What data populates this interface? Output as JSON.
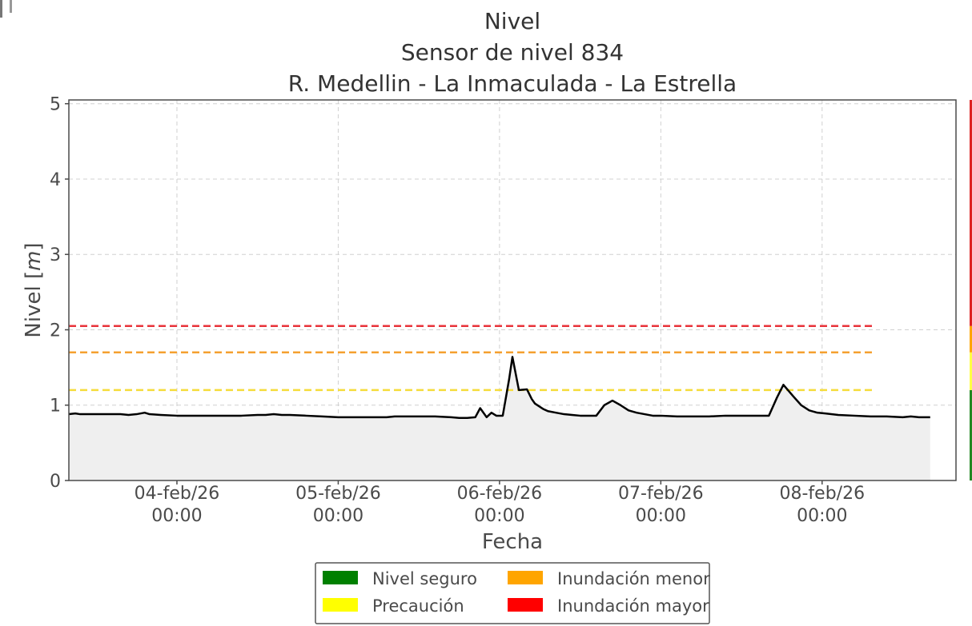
{
  "chart_data": {
    "type": "area",
    "title": [
      "Nivel",
      "Sensor de nivel 834",
      "R. Medellin - La Inmaculada - La Estrella"
    ],
    "xlabel": "Fecha",
    "ylabel_prefix": "Nivel [",
    "ylabel_unit": "m",
    "ylabel_suffix": "]",
    "x_unit": "days since 04-feb-26 00:00",
    "xlim": [
      -0.67,
      4.83
    ],
    "ylim": [
      0,
      5.05
    ],
    "grid": true,
    "xticks": [
      {
        "x": 0,
        "line1": "04-feb/26",
        "line2": "00:00"
      },
      {
        "x": 1,
        "line1": "05-feb/26",
        "line2": "00:00"
      },
      {
        "x": 2,
        "line1": "06-feb/26",
        "line2": "00:00"
      },
      {
        "x": 3,
        "line1": "07-feb/26",
        "line2": "00:00"
      },
      {
        "x": 4,
        "line1": "08-feb/26",
        "line2": "00:00"
      }
    ],
    "yticks": [
      0,
      1,
      2,
      3,
      4,
      5
    ],
    "thresholds": [
      {
        "name": "Precaución",
        "value": 1.2,
        "color": "#f5dc3c"
      },
      {
        "name": "Inundación menor",
        "value": 1.7,
        "color": "#f5a030"
      },
      {
        "name": "Inundación mayor",
        "value": 2.05,
        "color": "#e8333a"
      }
    ],
    "series": [
      {
        "name": "Nivel",
        "color": "#000000",
        "fill": "#efefef",
        "x": [
          -0.67,
          -0.63,
          -0.6,
          -0.5,
          -0.4,
          -0.35,
          -0.3,
          -0.25,
          -0.2,
          -0.17,
          -0.1,
          0.0,
          0.1,
          0.2,
          0.3,
          0.4,
          0.5,
          0.55,
          0.6,
          0.65,
          0.7,
          0.8,
          0.9,
          1.0,
          1.1,
          1.2,
          1.3,
          1.35,
          1.4,
          1.5,
          1.6,
          1.7,
          1.75,
          1.8,
          1.85,
          1.88,
          1.92,
          1.95,
          1.98,
          2.02,
          2.06,
          2.08,
          2.12,
          2.17,
          2.2,
          2.22,
          2.27,
          2.3,
          2.35,
          2.4,
          2.45,
          2.5,
          2.55,
          2.6,
          2.65,
          2.7,
          2.75,
          2.8,
          2.85,
          2.9,
          2.95,
          3.0,
          3.1,
          3.2,
          3.3,
          3.4,
          3.5,
          3.6,
          3.67,
          3.72,
          3.76,
          3.82,
          3.87,
          3.92,
          3.97,
          4.02,
          4.1,
          4.2,
          4.3,
          4.4,
          4.5,
          4.55,
          4.6,
          4.67
        ],
        "y": [
          0.88,
          0.89,
          0.88,
          0.88,
          0.88,
          0.88,
          0.87,
          0.88,
          0.9,
          0.88,
          0.87,
          0.86,
          0.86,
          0.86,
          0.86,
          0.86,
          0.87,
          0.87,
          0.88,
          0.87,
          0.87,
          0.86,
          0.85,
          0.84,
          0.84,
          0.84,
          0.84,
          0.85,
          0.85,
          0.85,
          0.85,
          0.84,
          0.83,
          0.83,
          0.84,
          0.96,
          0.84,
          0.9,
          0.86,
          0.86,
          1.35,
          1.64,
          1.2,
          1.21,
          1.08,
          1.02,
          0.95,
          0.92,
          0.9,
          0.88,
          0.87,
          0.86,
          0.86,
          0.86,
          1.0,
          1.06,
          1.0,
          0.93,
          0.9,
          0.88,
          0.86,
          0.86,
          0.85,
          0.85,
          0.85,
          0.86,
          0.86,
          0.86,
          0.86,
          1.1,
          1.27,
          1.12,
          1.0,
          0.93,
          0.9,
          0.89,
          0.87,
          0.86,
          0.85,
          0.85,
          0.84,
          0.85,
          0.84,
          0.84
        ]
      }
    ],
    "side_bar": [
      {
        "from": 0,
        "to": 1.2,
        "color": "#228822"
      },
      {
        "from": 1.2,
        "to": 1.7,
        "color": "#ffff44"
      },
      {
        "from": 1.7,
        "to": 2.05,
        "color": "#ffa500"
      },
      {
        "from": 2.05,
        "to": 5.05,
        "color": "#dd2222"
      }
    ],
    "legend": [
      {
        "label": "Nivel seguro",
        "color": "#008000"
      },
      {
        "label": "Inundación menor",
        "color": "#ffa500"
      },
      {
        "label": "Precaución",
        "color": "#ffff00"
      },
      {
        "label": "Inundación mayor",
        "color": "#ff0000"
      }
    ],
    "legend_position": "bottom-center"
  }
}
